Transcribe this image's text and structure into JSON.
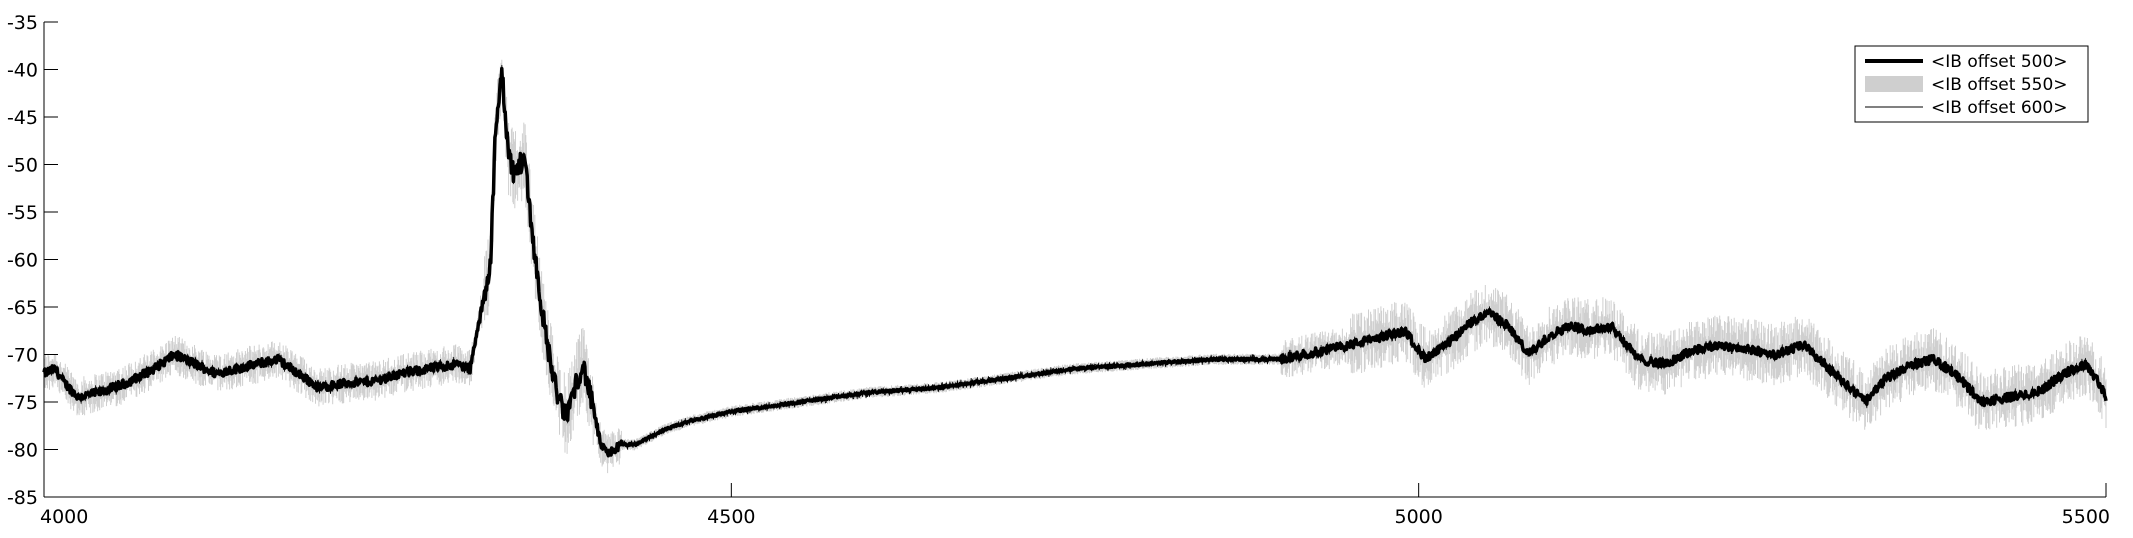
{
  "chart_data": {
    "type": "line",
    "title": "",
    "xlabel": "",
    "ylabel": "",
    "xlim": [
      4000,
      5500
    ],
    "ylim": [
      -85,
      -35
    ],
    "x_ticks": [
      4000,
      4500,
      5000,
      5500
    ],
    "y_ticks": [
      -35,
      -40,
      -45,
      -50,
      -55,
      -60,
      -65,
      -70,
      -75,
      -80,
      -85
    ],
    "grid": false,
    "legend_position": "top-right",
    "series": [
      {
        "name": "<IB offset 500>",
        "style": "thick-line",
        "color": "#000000",
        "x": [
          4000,
          4008,
          4015,
          4025,
          4040,
          4060,
          4080,
          4095,
          4110,
          4125,
          4140,
          4155,
          4170,
          4185,
          4200,
          4220,
          4240,
          4260,
          4280,
          4300,
          4310,
          4320,
          4325,
          4328,
          4333,
          4338,
          4342,
          4346,
          4350,
          4355,
          4360,
          4365,
          4370,
          4375,
          4380,
          4385,
          4392,
          4400,
          4405,
          4410,
          4415,
          4420,
          4430,
          4450,
          4470,
          4500,
          4550,
          4600,
          4650,
          4700,
          4750,
          4800,
          4850,
          4900,
          4950,
          4990,
          5005,
          5020,
          5035,
          5050,
          5065,
          5080,
          5095,
          5110,
          5125,
          5140,
          5160,
          5180,
          5200,
          5220,
          5240,
          5260,
          5280,
          5295,
          5310,
          5325,
          5340,
          5360,
          5375,
          5390,
          5410,
          5430,
          5450,
          5470,
          5485,
          5495,
          5500
        ],
        "y": [
          -72,
          -71.5,
          -73,
          -74.5,
          -74,
          -73,
          -71.5,
          -70,
          -71,
          -72,
          -71.5,
          -71,
          -70.5,
          -72,
          -73.5,
          -73,
          -72.8,
          -72,
          -71.5,
          -71,
          -71.5,
          -64,
          -60,
          -48,
          -40,
          -49,
          -51,
          -50,
          -49.5,
          -57,
          -63,
          -68,
          -72,
          -75,
          -76.5,
          -74,
          -71,
          -76,
          -79.5,
          -80.5,
          -80,
          -79.5,
          -79.5,
          -78,
          -77,
          -76,
          -75,
          -74,
          -73.5,
          -72.5,
          -71.5,
          -71,
          -70.5,
          -70.5,
          -69,
          -67.5,
          -70.5,
          -69,
          -67,
          -65.5,
          -67,
          -70,
          -68,
          -67,
          -67.5,
          -67,
          -70.5,
          -71,
          -69.5,
          -69,
          -69.5,
          -70,
          -69,
          -71,
          -73,
          -75,
          -72.5,
          -71,
          -70.5,
          -72,
          -75,
          -74.5,
          -74,
          -72,
          -71,
          -73,
          -74.5
        ]
      },
      {
        "name": "<IB offset 550>",
        "style": "gray-band",
        "color": "#cfcfcf"
      },
      {
        "name": "<IB offset 600>",
        "style": "thin-line",
        "color": "#000000"
      }
    ]
  }
}
